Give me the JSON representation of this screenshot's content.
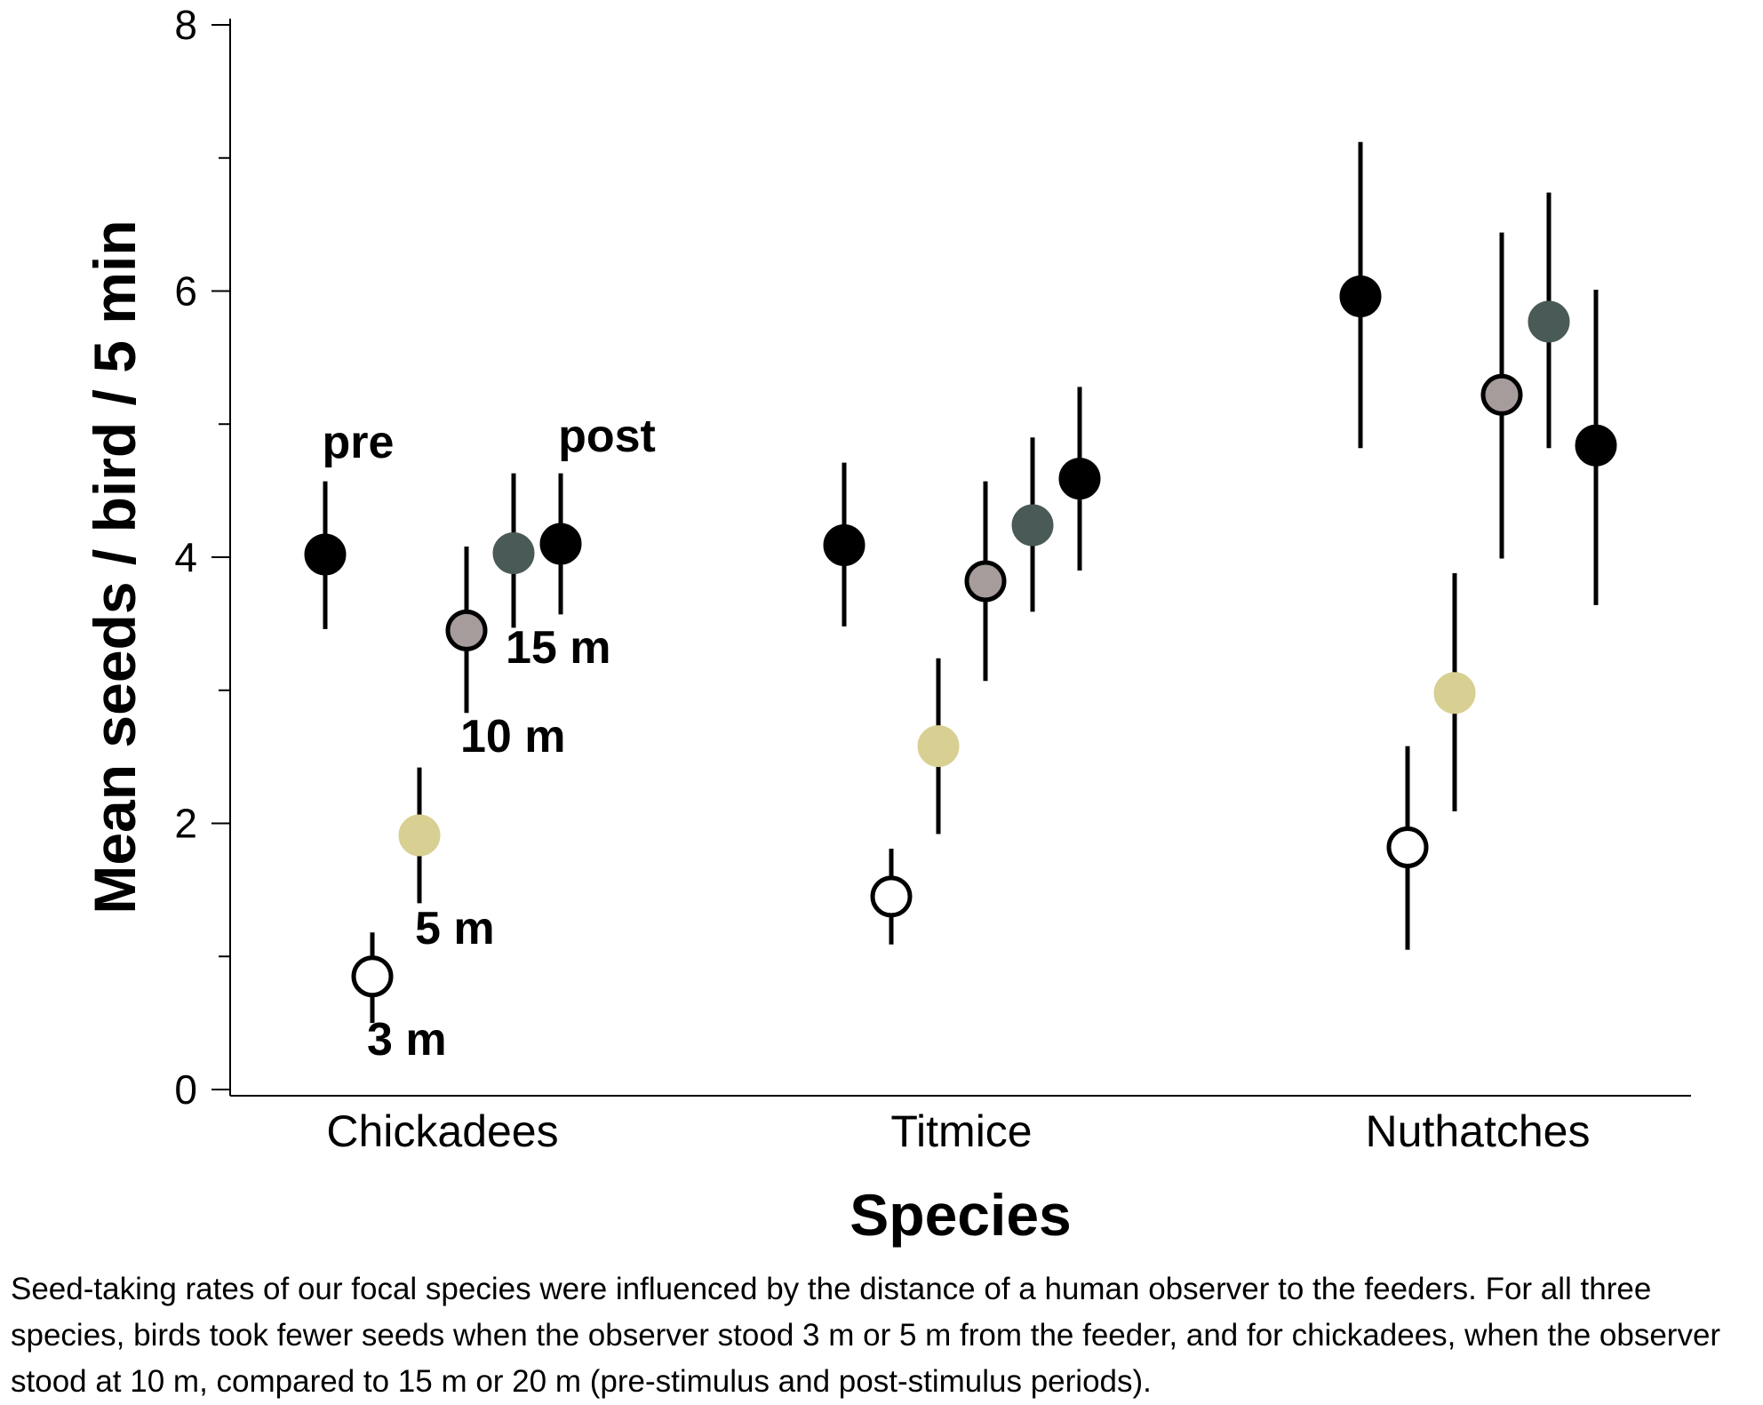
{
  "chart_data": {
    "type": "scatter",
    "subtype": "dot-plot with error bars",
    "title": "",
    "xlabel": "Species",
    "ylabel": "Mean seeds / bird / 5 min",
    "ylim": [
      0,
      8
    ],
    "yticks": [
      0,
      2,
      4,
      6,
      8
    ],
    "grid": false,
    "legend": "none",
    "categories": [
      "Chickadees",
      "Titmice",
      "Nuthatches"
    ],
    "conditions": [
      {
        "label": "pre",
        "fill": "#000000",
        "stroke": "#000000"
      },
      {
        "label": "3 m",
        "fill": "#ffffff",
        "stroke": "#000000"
      },
      {
        "label": "5 m",
        "fill": "#d8cf92",
        "stroke": "#d8cf92"
      },
      {
        "label": "10 m",
        "fill": "#a79c9c",
        "stroke": "#000000"
      },
      {
        "label": "15 m",
        "fill": "#4a5a56",
        "stroke": "#4a5a56"
      },
      {
        "label": "post",
        "fill": "#000000",
        "stroke": "#000000"
      }
    ],
    "series": [
      {
        "values": [
          4.02,
          0.85,
          1.91,
          3.45,
          4.03,
          4.1
        ],
        "lower": [
          3.46,
          0.5,
          1.4,
          2.83,
          3.47,
          3.57
        ],
        "upper": [
          4.57,
          1.18,
          2.42,
          4.08,
          4.63,
          4.63
        ]
      },
      {
        "values": [
          4.09,
          1.45,
          2.58,
          3.82,
          4.24,
          4.59
        ],
        "lower": [
          3.48,
          1.09,
          1.92,
          3.07,
          3.59,
          3.9
        ],
        "upper": [
          4.71,
          1.81,
          3.24,
          4.57,
          4.9,
          5.28
        ]
      },
      {
        "values": [
          5.96,
          1.82,
          2.98,
          5.22,
          5.77,
          4.84
        ],
        "lower": [
          4.82,
          1.05,
          2.09,
          3.99,
          4.82,
          3.64
        ],
        "upper": [
          7.12,
          2.58,
          3.88,
          6.44,
          6.74,
          6.01
        ]
      }
    ],
    "annotations": [
      "pre",
      "post",
      "15 m",
      "10 m",
      "5 m",
      "3 m"
    ]
  },
  "caption": "Seed-taking rates of our focal species were influenced by the distance of a human observer to the feeders. For all three species, birds took fewer seeds when the observer stood 3 m or 5 m from the feeder, and for chickadees, when the observer stood at 10 m, compared to 15 m or 20 m (pre-stimulus and post-stimulus periods)."
}
